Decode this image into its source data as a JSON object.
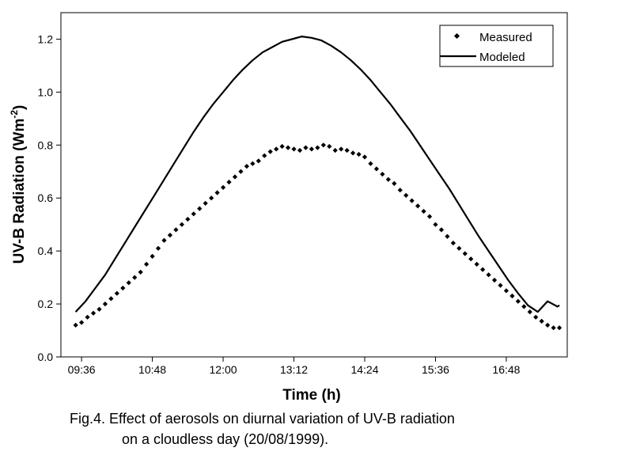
{
  "chart_data": {
    "type": "line",
    "title": "",
    "xlabel": "Time (h)",
    "ylabel_main": "UV-B Radiation (Wm",
    "ylabel_exp": "-2",
    "ylabel_close": ")",
    "xlim_minutes": [
      555,
      1070
    ],
    "ylim": [
      0.0,
      1.3
    ],
    "x_ticks": [
      {
        "minutes": 576,
        "label": "09:36"
      },
      {
        "minutes": 648,
        "label": "10:48"
      },
      {
        "minutes": 720,
        "label": "12:00"
      },
      {
        "minutes": 792,
        "label": "13:12"
      },
      {
        "minutes": 864,
        "label": "14:24"
      },
      {
        "minutes": 936,
        "label": "15:36"
      },
      {
        "minutes": 1008,
        "label": "16:48"
      }
    ],
    "y_ticks": [
      "0.0",
      "0.2",
      "0.4",
      "0.6",
      "0.8",
      "1.0",
      "1.2"
    ],
    "y_tick_values": [
      0.0,
      0.2,
      0.4,
      0.6,
      0.8,
      1.0,
      1.2
    ],
    "legend_position": "top-right",
    "grid": false,
    "series": [
      {
        "name": "Measured",
        "style": "diamond-markers",
        "color": "#000000",
        "x_minutes": [
          570,
          576,
          582,
          588,
          594,
          600,
          606,
          612,
          618,
          624,
          630,
          636,
          642,
          648,
          654,
          660,
          666,
          672,
          678,
          684,
          690,
          696,
          702,
          708,
          714,
          720,
          726,
          732,
          738,
          744,
          750,
          756,
          762,
          768,
          774,
          780,
          786,
          792,
          798,
          804,
          810,
          816,
          822,
          828,
          834,
          840,
          846,
          852,
          858,
          864,
          870,
          876,
          882,
          888,
          894,
          900,
          906,
          912,
          918,
          924,
          930,
          936,
          942,
          948,
          954,
          960,
          966,
          972,
          978,
          984,
          990,
          996,
          1002,
          1008,
          1014,
          1020,
          1026,
          1032,
          1038,
          1044,
          1050,
          1056,
          1062
        ],
        "values": [
          0.12,
          0.13,
          0.15,
          0.165,
          0.18,
          0.2,
          0.22,
          0.24,
          0.26,
          0.28,
          0.3,
          0.32,
          0.35,
          0.38,
          0.41,
          0.44,
          0.46,
          0.48,
          0.5,
          0.52,
          0.54,
          0.56,
          0.58,
          0.6,
          0.62,
          0.64,
          0.66,
          0.68,
          0.7,
          0.72,
          0.73,
          0.74,
          0.76,
          0.775,
          0.785,
          0.795,
          0.79,
          0.785,
          0.78,
          0.79,
          0.785,
          0.79,
          0.8,
          0.795,
          0.78,
          0.785,
          0.78,
          0.77,
          0.765,
          0.755,
          0.73,
          0.71,
          0.69,
          0.67,
          0.655,
          0.63,
          0.61,
          0.59,
          0.57,
          0.55,
          0.53,
          0.5,
          0.48,
          0.455,
          0.43,
          0.41,
          0.39,
          0.37,
          0.35,
          0.33,
          0.31,
          0.29,
          0.27,
          0.25,
          0.23,
          0.21,
          0.19,
          0.17,
          0.15,
          0.135,
          0.12,
          0.11,
          0.11
        ]
      },
      {
        "name": "Modeled",
        "style": "solid-line",
        "color": "#000000",
        "x_minutes": [
          570,
          580,
          590,
          600,
          610,
          620,
          630,
          640,
          650,
          660,
          670,
          680,
          690,
          700,
          710,
          720,
          730,
          740,
          750,
          760,
          770,
          780,
          790,
          800,
          810,
          820,
          830,
          840,
          850,
          860,
          870,
          880,
          890,
          900,
          910,
          920,
          930,
          940,
          950,
          960,
          970,
          980,
          990,
          1000,
          1010,
          1020,
          1030,
          1040,
          1050,
          1060,
          1062
        ],
        "values": [
          0.17,
          0.21,
          0.26,
          0.31,
          0.37,
          0.43,
          0.49,
          0.55,
          0.61,
          0.67,
          0.73,
          0.79,
          0.85,
          0.905,
          0.955,
          1.0,
          1.045,
          1.085,
          1.12,
          1.15,
          1.17,
          1.19,
          1.2,
          1.21,
          1.205,
          1.195,
          1.175,
          1.15,
          1.12,
          1.085,
          1.045,
          1.0,
          0.955,
          0.905,
          0.855,
          0.8,
          0.745,
          0.69,
          0.635,
          0.575,
          0.515,
          0.455,
          0.4,
          0.345,
          0.29,
          0.24,
          0.195,
          0.17,
          0.21,
          0.19,
          0.195
        ]
      }
    ]
  },
  "caption": {
    "line1": "Fig.4. Effect of aerosols on diurnal variation of UV-B radiation",
    "line2": "on a cloudless day (20/08/1999)."
  }
}
